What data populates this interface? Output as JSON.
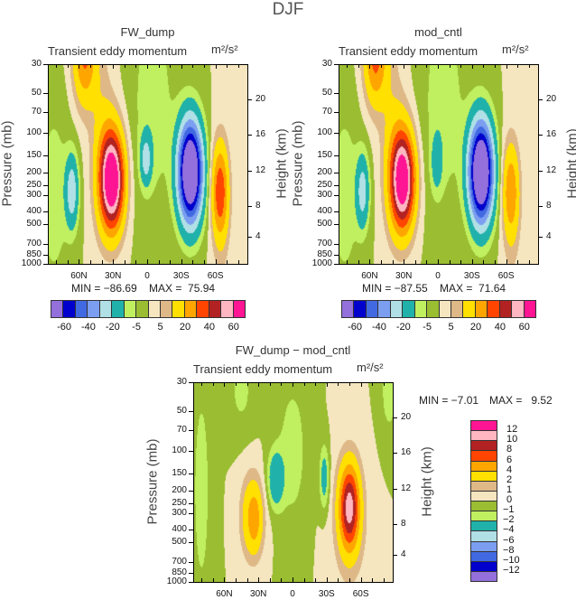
{
  "figure_title": "DJF",
  "subtitle": "Transient eddy momentum",
  "units": "m²/s²",
  "pressure_axis_label": "Pressure (mb)",
  "height_axis_label": "Height (km)",
  "pressure_ticks": [
    30,
    50,
    70,
    100,
    150,
    200,
    250,
    300,
    400,
    500,
    700,
    850,
    1000
  ],
  "height_ticks": [
    4,
    8,
    12,
    16,
    20
  ],
  "lat_ticks": [
    {
      "lat": 60,
      "label": "60N"
    },
    {
      "lat": 30,
      "label": "30N"
    },
    {
      "lat": 0,
      "label": "0"
    },
    {
      "lat": -30,
      "label": "30S"
    },
    {
      "lat": -60,
      "label": "60S"
    }
  ],
  "colorbar_top": {
    "levels": [
      -60,
      -50,
      -40,
      -30,
      -20,
      -10,
      -5,
      0,
      5,
      10,
      20,
      30,
      40,
      50,
      60
    ],
    "labels": [
      "-60",
      "",
      "-40",
      "",
      "-20",
      "",
      "-5",
      "",
      "5",
      "",
      "20",
      "",
      "40",
      "",
      "60"
    ]
  },
  "colorbar_diff": {
    "levels": [
      -12,
      -10,
      -8,
      -6,
      -4,
      -2,
      -1,
      0,
      1,
      2,
      4,
      6,
      8,
      10,
      12
    ],
    "labels": [
      "−12",
      "−10",
      "−8",
      "−6",
      "−4",
      "−2",
      "−1",
      "0",
      "1",
      "2",
      "4",
      "6",
      "8",
      "10",
      "12"
    ]
  },
  "colors": [
    "#9370DB",
    "#0000CD",
    "#4169E1",
    "#7B9EF0",
    "#B0E0E6",
    "#20B2AA",
    "#C0F060",
    "#9ABD32",
    "#F5E6C0",
    "#DEB887",
    "#FFE000",
    "#FFA500",
    "#FF4500",
    "#B22222",
    "#FFB6C1",
    "#FF1493"
  ],
  "chart_data": [
    {
      "type": "heatmap",
      "title": "FW_dump",
      "xlabel": "Latitude",
      "ylabel": "Pressure (mb)",
      "xlim": [
        88,
        -88
      ],
      "ylim": [
        1000,
        30
      ],
      "min_text": "MIN = −86.69",
      "max_text": "MAX =  75.94",
      "min": -86.69,
      "max": 75.94,
      "features": [
        {
          "lat": 31,
          "p": 230,
          "amp": 78,
          "slat": 7.5,
          "slogp": 0.6
        },
        {
          "lat": -38,
          "p": 200,
          "amp": -90,
          "slat": 7.5,
          "slogp": 0.62
        },
        {
          "lat": -64,
          "p": 280,
          "amp": 34,
          "slat": 5,
          "slogp": 0.55
        },
        {
          "lat": 55,
          "p": 25,
          "amp": 32,
          "slat": 7,
          "slogp": 0.6
        },
        {
          "lat": 66,
          "p": 280,
          "amp": -26,
          "slat": 4,
          "slogp": 0.45
        },
        {
          "lat": 1,
          "p": 160,
          "amp": -22,
          "slat": 3.5,
          "slogp": 0.3
        },
        {
          "lat": 82,
          "p": 300,
          "amp": -8,
          "slat": 10,
          "slogp": 1.2
        },
        {
          "lat": -5,
          "p": 60,
          "amp": -8,
          "slat": 14,
          "slogp": 1.4
        },
        {
          "lat": 40,
          "p": 100,
          "amp": 8,
          "slat": 8,
          "slogp": 1.2
        },
        {
          "lat": -65,
          "p": 400,
          "amp": 6,
          "slat": 6,
          "slogp": 1.0
        }
      ]
    },
    {
      "type": "heatmap",
      "title": "mod_cntl",
      "xlabel": "Latitude",
      "ylabel": "Pressure (mb)",
      "xlim": [
        88,
        -88
      ],
      "ylim": [
        1000,
        30
      ],
      "min_text": "MIN = −87.55",
      "max_text": "MAX =  71.64",
      "min": -87.55,
      "max": 71.64,
      "features": [
        {
          "lat": 31,
          "p": 230,
          "amp": 74,
          "slat": 7.5,
          "slogp": 0.6
        },
        {
          "lat": -38,
          "p": 200,
          "amp": -91,
          "slat": 7.5,
          "slogp": 0.62
        },
        {
          "lat": -64,
          "p": 280,
          "amp": 24,
          "slat": 5,
          "slogp": 0.55
        },
        {
          "lat": 55,
          "p": 25,
          "amp": 34,
          "slat": 7,
          "slogp": 0.6
        },
        {
          "lat": 66,
          "p": 280,
          "amp": -24,
          "slat": 4,
          "slogp": 0.45
        },
        {
          "lat": 1,
          "p": 170,
          "amp": -12,
          "slat": 3.5,
          "slogp": 0.35
        },
        {
          "lat": 82,
          "p": 300,
          "amp": -8,
          "slat": 10,
          "slogp": 1.2
        },
        {
          "lat": -5,
          "p": 60,
          "amp": -8,
          "slat": 14,
          "slogp": 1.4
        },
        {
          "lat": 40,
          "p": 100,
          "amp": 8,
          "slat": 8,
          "slogp": 1.2
        },
        {
          "lat": -65,
          "p": 400,
          "amp": 6,
          "slat": 6,
          "slogp": 1.0
        }
      ]
    },
    {
      "type": "heatmap",
      "title": "FW_dump − mod_cntl",
      "xlabel": "Latitude",
      "ylabel": "Pressure (mb)",
      "xlim": [
        88,
        -88
      ],
      "ylim": [
        1000,
        30
      ],
      "min_text": "MIN = −7.01",
      "max_text": "MAX =   9.52",
      "min": -7.01,
      "max": 9.52,
      "features": [
        {
          "lat": -50,
          "p": 270,
          "amp": 10,
          "slat": 6,
          "slogp": 0.5
        },
        {
          "lat": 35,
          "p": 320,
          "amp": 4.5,
          "slat": 7,
          "slogp": 0.5
        },
        {
          "lat": 33,
          "p": 340,
          "amp": 1.5,
          "slat": 3,
          "slogp": 0.3
        },
        {
          "lat": 15,
          "p": 165,
          "amp": -3.5,
          "slat": 5,
          "slogp": 0.35
        },
        {
          "lat": -28,
          "p": 160,
          "amp": -3,
          "slat": 3,
          "slogp": 0.4
        },
        {
          "lat": 80,
          "p": 200,
          "amp": -1.5,
          "slat": 6,
          "slogp": 1.5
        },
        {
          "lat": 0,
          "p": 100,
          "amp": -1.5,
          "slat": 10,
          "slogp": 1.0
        },
        {
          "lat": 45,
          "p": 35,
          "amp": -1.3,
          "slat": 8,
          "slogp": 0.5
        },
        {
          "lat": -85,
          "p": 35,
          "amp": -1.5,
          "slat": 6,
          "slogp": 0.6
        },
        {
          "lat": -50,
          "p": 350,
          "amp": 1.5,
          "slat": 12,
          "slogp": 0.9
        }
      ]
    }
  ]
}
